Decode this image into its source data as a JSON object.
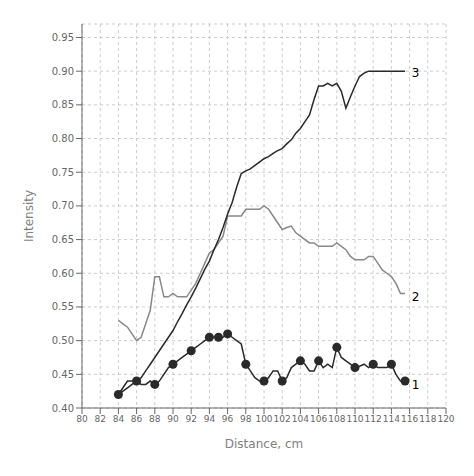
{
  "chart_data": {
    "type": "line",
    "xlabel": "Distance, cm",
    "ylabel": "Intensity",
    "xlim": [
      80,
      120
    ],
    "ylim": [
      0.4,
      0.97
    ],
    "xticks": [
      80,
      82,
      84,
      86,
      88,
      90,
      92,
      94,
      96,
      98,
      100,
      102,
      104,
      106,
      108,
      110,
      112,
      114,
      116,
      118,
      120
    ],
    "yticks": [
      {
        "value": 0.4,
        "label": "0.40"
      },
      0.45,
      {
        "value": 0.5,
        "label": "0.50"
      },
      0.55,
      {
        "value": 0.6,
        "label": "0.60"
      },
      0.65,
      {
        "value": 0.7,
        "label": "0.70"
      },
      0.75,
      {
        "value": 0.8,
        "label": "0.80"
      },
      0.85,
      {
        "value": 0.9,
        "label": "0.90"
      },
      0.95
    ],
    "grid": true,
    "series": [
      {
        "color": "#888888",
        "x": [
          84.0,
          84.5,
          85.0,
          85.5,
          86.0,
          86.5,
          87.0,
          87.5,
          88.0,
          88.5,
          89.0,
          89.5,
          90.0,
          90.5,
          91.0,
          91.5,
          92.0,
          92.5,
          93.0,
          93.5,
          94.0,
          94.5,
          95.0,
          95.5,
          96.0,
          96.5,
          97.0,
          97.5,
          98.0,
          98.5,
          99.0,
          99.5,
          100.0,
          100.5,
          101.0,
          101.5,
          102.0,
          102.5,
          103.0,
          103.5,
          104.0,
          104.5,
          105.0,
          105.5,
          106.0,
          106.5,
          107.0,
          107.5,
          108.0,
          108.5,
          109.0,
          109.5,
          110.0,
          110.5,
          111.0,
          111.5,
          112.0,
          112.5,
          113.0,
          113.5,
          114.0,
          114.5,
          115.0,
          115.5
        ],
        "values": [
          0.53,
          0.525,
          0.52,
          0.51,
          0.5,
          0.505,
          0.525,
          0.545,
          0.595,
          0.595,
          0.565,
          0.565,
          0.57,
          0.565,
          0.565,
          0.565,
          0.575,
          0.585,
          0.6,
          0.615,
          0.63,
          0.635,
          0.645,
          0.655,
          0.685,
          0.685,
          0.685,
          0.685,
          0.695,
          0.695,
          0.695,
          0.695,
          0.7,
          0.695,
          0.685,
          0.675,
          0.665,
          0.668,
          0.67,
          0.66,
          0.655,
          0.65,
          0.645,
          0.645,
          0.64,
          0.64,
          0.64,
          0.64,
          0.645,
          0.64,
          0.635,
          0.625,
          0.62,
          0.62,
          0.62,
          0.625,
          0.625,
          0.615,
          0.605,
          0.6,
          0.595,
          0.585,
          0.57,
          0.57
        ]
      },
      {
        "color": "#2a2a2a",
        "x": [
          84.0,
          84.5,
          85.0,
          85.5,
          86.0,
          86.5,
          87.0,
          87.5,
          88.0,
          88.5,
          89.0,
          89.5,
          90.0,
          90.5,
          91.0,
          91.5,
          92.0,
          92.5,
          93.0,
          93.5,
          94.0,
          94.5,
          95.0,
          95.5,
          96.0,
          96.5,
          97.0,
          97.5,
          98.0,
          98.5,
          99.0,
          99.5,
          100.0,
          100.5,
          101.0,
          101.5,
          102.0,
          102.5,
          103.0,
          103.5,
          104.0,
          104.5,
          105.0,
          105.5,
          106.0,
          106.5,
          107.0,
          107.5,
          108.0,
          108.5,
          109.0,
          109.5,
          110.0,
          110.5,
          111.0,
          111.5,
          112.0,
          112.5,
          113.0,
          113.5,
          114.0,
          114.5,
          115.0,
          115.5
        ],
        "values": [
          0.42,
          0.425,
          0.43,
          0.435,
          0.44,
          0.445,
          0.455,
          0.465,
          0.475,
          0.485,
          0.495,
          0.505,
          0.515,
          0.528,
          0.54,
          0.553,
          0.565,
          0.578,
          0.592,
          0.606,
          0.618,
          0.635,
          0.65,
          0.668,
          0.688,
          0.705,
          0.728,
          0.748,
          0.752,
          0.755,
          0.76,
          0.765,
          0.77,
          0.773,
          0.778,
          0.782,
          0.785,
          0.792,
          0.798,
          0.808,
          0.815,
          0.825,
          0.835,
          0.858,
          0.878,
          0.878,
          0.882,
          0.878,
          0.882,
          0.87,
          0.845,
          0.862,
          0.878,
          0.892,
          0.897,
          0.9,
          0.9,
          0.9,
          0.9,
          0.9,
          0.9,
          0.9,
          0.9,
          0.9
        ]
      },
      {
        "color": "#2a2a2a",
        "x": [
          84.0,
          84.5,
          85.0,
          85.5,
          86.0,
          86.5,
          87.0,
          87.5,
          88.0,
          88.5,
          89.0,
          89.5,
          90.0,
          90.5,
          91.0,
          91.5,
          92.0,
          92.5,
          93.0,
          93.5,
          94.0,
          94.5,
          95.0,
          95.5,
          96.0,
          96.5,
          97.0,
          97.5,
          98.0,
          98.5,
          99.0,
          99.5,
          100.0,
          100.5,
          101.0,
          101.5,
          102.0,
          102.5,
          103.0,
          103.5,
          104.0,
          104.5,
          105.0,
          105.5,
          106.0,
          106.5,
          107.0,
          107.5,
          108.0,
          108.5,
          109.0,
          109.5,
          110.0,
          110.5,
          111.0,
          111.5,
          112.0,
          112.5,
          113.0,
          113.5,
          114.0,
          114.5,
          115.0,
          115.5
        ],
        "values": [
          0.42,
          0.43,
          0.44,
          0.44,
          0.44,
          0.435,
          0.435,
          0.44,
          0.435,
          0.44,
          0.45,
          0.46,
          0.465,
          0.47,
          0.475,
          0.48,
          0.485,
          0.49,
          0.495,
          0.5,
          0.505,
          0.505,
          0.505,
          0.505,
          0.51,
          0.505,
          0.5,
          0.495,
          0.465,
          0.455,
          0.445,
          0.44,
          0.44,
          0.445,
          0.455,
          0.455,
          0.44,
          0.445,
          0.46,
          0.465,
          0.47,
          0.465,
          0.455,
          0.455,
          0.47,
          0.46,
          0.465,
          0.46,
          0.49,
          0.475,
          0.47,
          0.465,
          0.46,
          0.462,
          0.465,
          0.46,
          0.465,
          0.46,
          0.46,
          0.46,
          0.465,
          0.45,
          0.44,
          0.44
        ]
      },
      {
        "type": "scatter",
        "marker": "circle",
        "color": "#2a2a2a",
        "x": [
          84.0,
          86.0,
          88.0,
          90.0,
          92.0,
          94.0,
          95.0,
          96.0,
          98.0,
          100.0,
          102.0,
          104.0,
          106.0,
          108.0,
          110.0,
          112.0,
          114.0,
          115.5
        ],
        "values": [
          0.42,
          0.44,
          0.435,
          0.465,
          0.485,
          0.505,
          0.505,
          0.51,
          0.465,
          0.44,
          0.44,
          0.47,
          0.47,
          0.49,
          0.46,
          0.465,
          0.465,
          0.44
        ]
      }
    ],
    "annotations": [
      {
        "text": "1",
        "x": 115.7,
        "y": 0.435
      },
      {
        "text": "2",
        "x": 115.7,
        "y": 0.565
      },
      {
        "text": "3",
        "x": 115.7,
        "y": 0.898
      }
    ]
  }
}
